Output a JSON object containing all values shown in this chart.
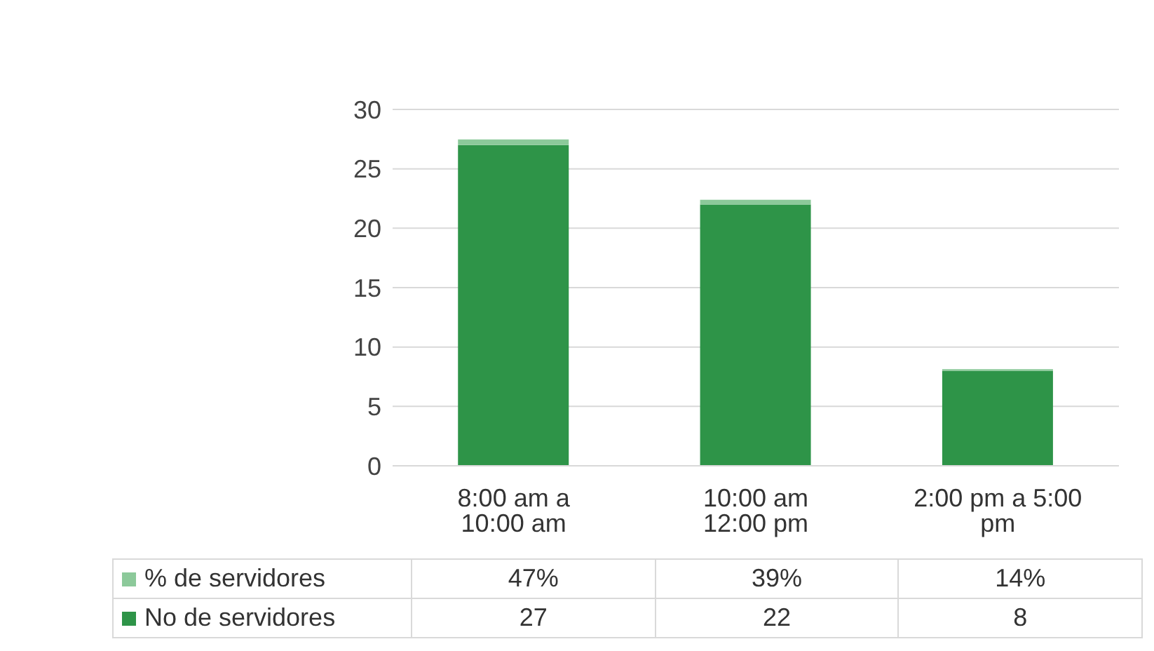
{
  "chart_data": {
    "type": "bar",
    "categories": [
      "8:00 am a 10:00 am",
      "10:00 am 12:00 pm",
      "2:00 pm a 5:00 pm"
    ],
    "stacked": true,
    "ylim": [
      0,
      30
    ],
    "yticks": [
      0,
      5,
      10,
      15,
      20,
      25,
      30
    ],
    "grid": "y",
    "legend": "bottom",
    "series": [
      {
        "name": "No de servidores",
        "color": "#2e9448",
        "values": [
          27,
          22,
          8
        ],
        "value_labels": [
          "27",
          "22",
          "8"
        ]
      },
      {
        "name": "% de servidores",
        "color": "#8cc99a",
        "values": [
          0.47,
          0.39,
          0.14
        ],
        "value_labels": [
          "47%",
          "39%",
          "14%"
        ]
      }
    ]
  }
}
